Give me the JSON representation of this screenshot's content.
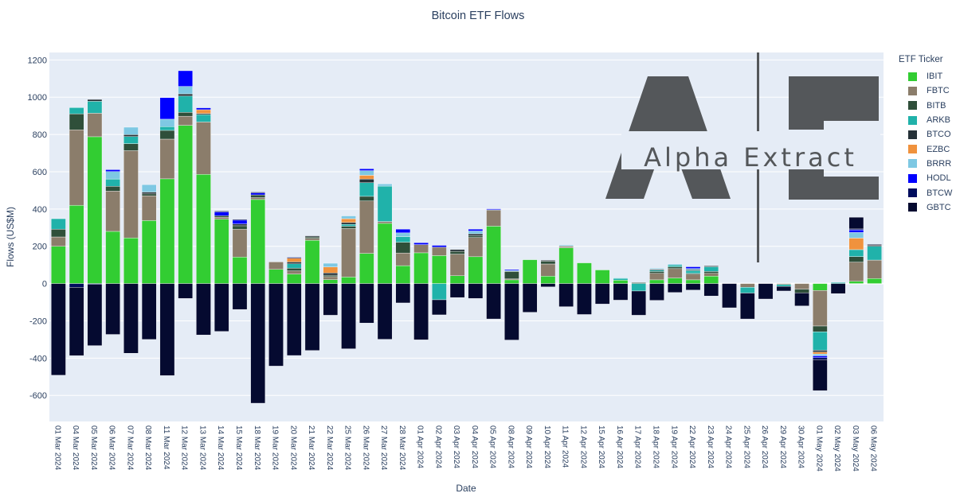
{
  "chart_data": {
    "type": "bar",
    "barmode": "relative",
    "title": "Bitcoin ETF Flows",
    "xlabel": "Date",
    "ylabel": "Flows (US$M)",
    "ylim": [
      -740,
      1240
    ],
    "yticks": [
      -600,
      -400,
      -200,
      0,
      200,
      400,
      600,
      800,
      1000,
      1200
    ],
    "grid": true,
    "legend_title": "ETF Ticker",
    "legend_position": "right",
    "watermark": "Alpha Extract",
    "categories": [
      "01 Mar 2024",
      "04 Mar 2024",
      "05 Mar 2024",
      "06 Mar 2024",
      "07 Mar 2024",
      "08 Mar 2024",
      "11 Mar 2024",
      "12 Mar 2024",
      "13 Mar 2024",
      "14 Mar 2024",
      "15 Mar 2024",
      "18 Mar 2024",
      "19 Mar 2024",
      "20 Mar 2024",
      "21 Mar 2024",
      "22 Mar 2024",
      "25 Mar 2024",
      "26 Mar 2024",
      "27 Mar 2024",
      "28 Mar 2024",
      "01 Apr 2024",
      "02 Apr 2024",
      "03 Apr 2024",
      "04 Apr 2024",
      "05 Apr 2024",
      "08 Apr 2024",
      "09 Apr 2024",
      "10 Apr 2024",
      "11 Apr 2024",
      "12 Apr 2024",
      "15 Apr 2024",
      "16 Apr 2024",
      "17 Apr 2024",
      "18 Apr 2024",
      "19 Apr 2024",
      "22 Apr 2024",
      "23 Apr 2024",
      "24 Apr 2024",
      "25 Apr 2024",
      "26 Apr 2024",
      "29 Apr 2024",
      "30 Apr 2024",
      "01 May 2024",
      "02 May 2024",
      "03 May 2024",
      "06 May 2024"
    ],
    "series": [
      {
        "name": "IBIT",
        "color": "#32cd32",
        "values": [
          200,
          420,
          788,
          280,
          245,
          338,
          562,
          849,
          586,
          345,
          142,
          451,
          76,
          51,
          232,
          21,
          35,
          162,
          323,
          96,
          165,
          150,
          42,
          144,
          308,
          20,
          128,
          40,
          192,
          111,
          73,
          18,
          0,
          20,
          30,
          20,
          40,
          0,
          0,
          0,
          0,
          0,
          -37,
          0,
          12,
          27
        ]
      },
      {
        "name": "FBTC",
        "color": "#8b7d6b",
        "values": [
          50,
          405,
          126,
          216,
          468,
          133,
          213,
          49,
          281,
          10,
          150,
          10,
          40,
          17,
          10,
          16,
          260,
          281,
          10,
          68,
          44,
          45,
          116,
          103,
          85,
          5,
          0,
          65,
          7,
          0,
          0,
          0,
          0,
          35,
          50,
          30,
          15,
          0,
          -20,
          0,
          -5,
          -30,
          -191,
          0,
          103,
          99
        ]
      },
      {
        "name": "BITB",
        "color": "#2f4f3a",
        "values": [
          42,
          86,
          0,
          26,
          38,
          10,
          47,
          21,
          0,
          9,
          18,
          15,
          0,
          15,
          8,
          8,
          13,
          25,
          0,
          58,
          0,
          0,
          15,
          10,
          0,
          40,
          0,
          15,
          0,
          0,
          0,
          0,
          5,
          10,
          10,
          5,
          10,
          0,
          0,
          0,
          0,
          -20,
          -31,
          0,
          30,
          0
        ]
      },
      {
        "name": "ARKB",
        "color": "#20b2aa",
        "values": [
          56,
          33,
          64,
          39,
          38,
          0,
          20,
          87,
          40,
          0,
          0,
          0,
          0,
          23,
          0,
          0,
          10,
          73,
          190,
          30,
          0,
          -87,
          0,
          0,
          0,
          0,
          0,
          0,
          0,
          0,
          0,
          10,
          -40,
          7,
          10,
          15,
          25,
          0,
          -31,
          0,
          -10,
          0,
          -99,
          6,
          37,
          74
        ]
      },
      {
        "name": "BTCO",
        "color": "#263238",
        "values": [
          0,
          0,
          10,
          0,
          10,
          10,
          0,
          12,
          6,
          0,
          10,
          0,
          0,
          10,
          6,
          12,
          10,
          20,
          0,
          0,
          0,
          0,
          10,
          10,
          3,
          0,
          0,
          5,
          3,
          0,
          0,
          0,
          0,
          5,
          0,
          5,
          5,
          0,
          0,
          0,
          0,
          0,
          -10,
          0,
          0,
          6
        ]
      },
      {
        "name": "EZBC",
        "color": "#f0923d",
        "values": [
          0,
          0,
          0,
          0,
          0,
          0,
          0,
          0,
          20,
          0,
          0,
          0,
          0,
          20,
          0,
          32,
          20,
          20,
          0,
          0,
          0,
          0,
          0,
          0,
          0,
          0,
          0,
          0,
          0,
          0,
          0,
          0,
          0,
          0,
          0,
          0,
          0,
          0,
          0,
          0,
          0,
          0,
          -10,
          0,
          62,
          0
        ]
      },
      {
        "name": "BRRR",
        "color": "#7ec8e3",
        "values": [
          0,
          0,
          0,
          40,
          40,
          40,
          40,
          40,
          0,
          0,
          0,
          0,
          0,
          0,
          0,
          20,
          15,
          25,
          12,
          20,
          0,
          0,
          0,
          15,
          0,
          5,
          0,
          0,
          5,
          0,
          0,
          3,
          0,
          5,
          5,
          5,
          0,
          0,
          0,
          0,
          0,
          0,
          -10,
          0,
          30,
          0
        ]
      },
      {
        "name": "HODL",
        "color": "#0000ff",
        "values": [
          0,
          0,
          0,
          10,
          0,
          0,
          116,
          84,
          10,
          20,
          20,
          10,
          0,
          0,
          0,
          0,
          0,
          10,
          0,
          20,
          10,
          10,
          0,
          10,
          5,
          5,
          0,
          0,
          0,
          0,
          0,
          0,
          0,
          0,
          0,
          10,
          0,
          0,
          0,
          0,
          0,
          0,
          -10,
          0,
          14,
          0
        ]
      },
      {
        "name": "BTCW",
        "color": "#000d5e",
        "values": [
          0,
          -20,
          -5,
          0,
          0,
          0,
          0,
          0,
          0,
          5,
          5,
          5,
          0,
          5,
          0,
          0,
          0,
          0,
          0,
          0,
          0,
          0,
          0,
          0,
          0,
          0,
          0,
          0,
          0,
          0,
          0,
          0,
          0,
          0,
          0,
          0,
          0,
          0,
          0,
          0,
          0,
          0,
          -10,
          0,
          5,
          0
        ]
      },
      {
        "name": "GBTC",
        "color": "#050a30",
        "values": [
          -492,
          -367,
          -328,
          -273,
          -374,
          -300,
          -494,
          -80,
          -276,
          -257,
          -139,
          -642,
          -443,
          -386,
          -359,
          -170,
          -350,
          -212,
          -299,
          -104,
          -302,
          -81,
          -75,
          -80,
          -190,
          -303,
          -154,
          -18,
          -124,
          -166,
          -110,
          -89,
          -130,
          -90,
          -48,
          -35,
          -67,
          -130,
          -139,
          -83,
          -25,
          -70,
          -167,
          -54,
          63,
          4
        ]
      }
    ]
  }
}
